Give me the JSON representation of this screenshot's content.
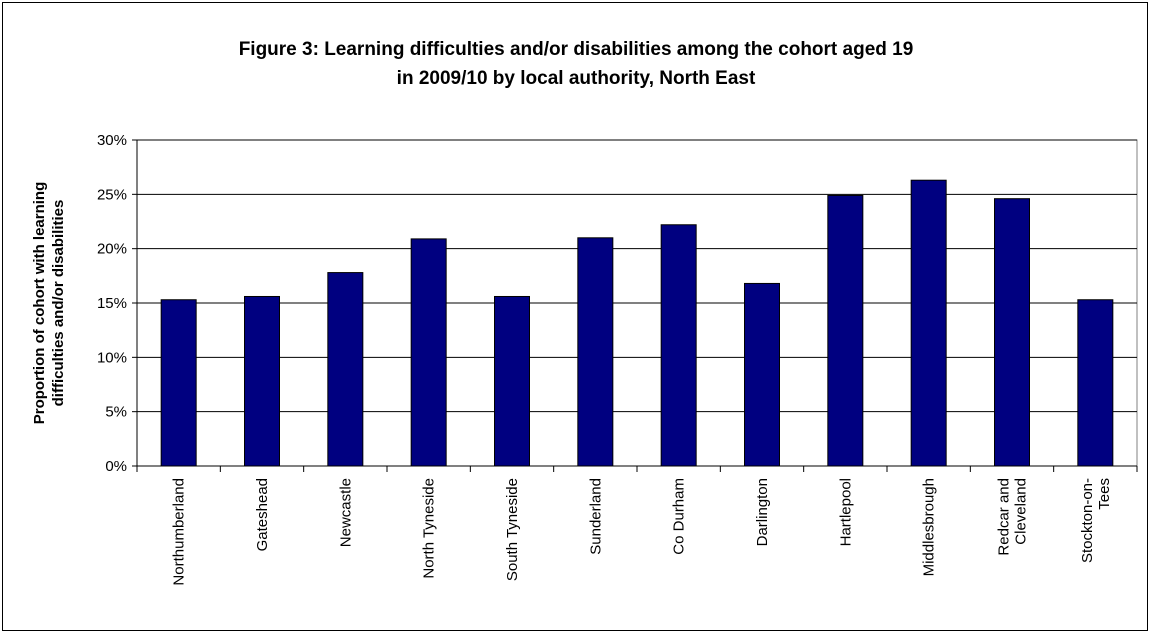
{
  "chart_data": {
    "type": "bar",
    "title_lines": [
      "Figure 3: Learning difficulties and/or disabilities among the cohort aged 19",
      "in 2009/10 by local authority, North East"
    ],
    "ylabel_lines": [
      "Proportion of cohort with learning",
      "difficulties and/or disabilities"
    ],
    "xlabel": "",
    "ylim": [
      0,
      0.3
    ],
    "ytick_values": [
      0,
      0.05,
      0.1,
      0.15,
      0.2,
      0.25,
      0.3
    ],
    "ytick_labels": [
      "0%",
      "5%",
      "10%",
      "15%",
      "20%",
      "25%",
      "30%"
    ],
    "grid": true,
    "legend": "none",
    "bar_color": "#000080",
    "categories": [
      [
        "Northumberland"
      ],
      [
        "Gateshead"
      ],
      [
        "Newcastle"
      ],
      [
        "North Tyneside"
      ],
      [
        "South Tyneside"
      ],
      [
        "Sunderland"
      ],
      [
        "Co Durham"
      ],
      [
        "Darlington"
      ],
      [
        "Hartlepool"
      ],
      [
        "Middlesbrough"
      ],
      [
        "Redcar and",
        "Cleveland"
      ],
      [
        "Stockton-on-",
        "Tees"
      ]
    ],
    "values": [
      0.153,
      0.156,
      0.178,
      0.209,
      0.156,
      0.21,
      0.222,
      0.168,
      0.249,
      0.263,
      0.246,
      0.153
    ]
  }
}
